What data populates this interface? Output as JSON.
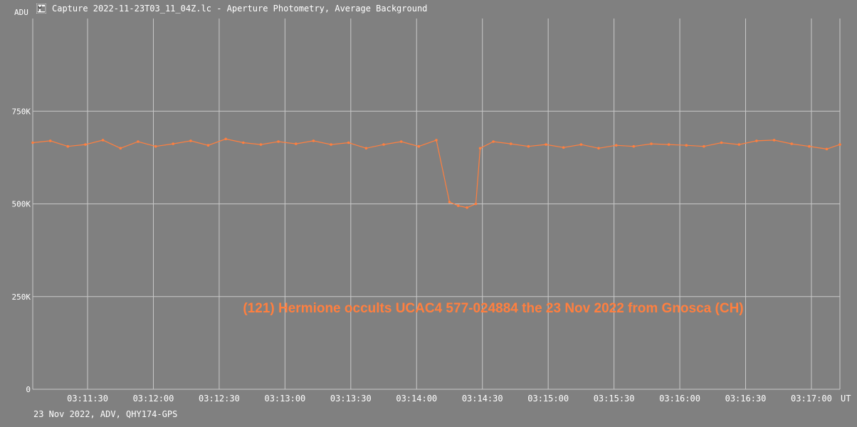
{
  "window": {
    "title": "Capture 2022-11-23T03_11_04Z.lc - Aperture Photometry, Average Background",
    "icon": "lightcurve-app-icon"
  },
  "footer": {
    "info": "23 Nov 2022, ADV, QHY174-GPS"
  },
  "colors": {
    "background": "#808080",
    "grid": "#c8c8c8",
    "series": "#ff7f3f",
    "text": "#ffffff"
  },
  "chart_data": {
    "type": "line",
    "title": "(121) Hermione occults UCAC4 577-024884 the 23 Nov 2022 from Gnosca (CH)",
    "ylabel": "ADU",
    "xlabel": "UT",
    "ylim": [
      0,
      1000000
    ],
    "xlim": [
      "03:11:05",
      "03:17:13"
    ],
    "y_ticks": [
      {
        "value": 0,
        "label": "0"
      },
      {
        "value": 250000,
        "label": "250K"
      },
      {
        "value": 500000,
        "label": "500K"
      },
      {
        "value": 750000,
        "label": "750K"
      }
    ],
    "x_ticks": [
      {
        "value": "03:11:30",
        "label": "03:11:30"
      },
      {
        "value": "03:12:00",
        "label": "03:12:00"
      },
      {
        "value": "03:12:30",
        "label": "03:12:30"
      },
      {
        "value": "03:13:00",
        "label": "03:13:00"
      },
      {
        "value": "03:13:30",
        "label": "03:13:30"
      },
      {
        "value": "03:14:00",
        "label": "03:14:00"
      },
      {
        "value": "03:14:30",
        "label": "03:14:30"
      },
      {
        "value": "03:15:00",
        "label": "03:15:00"
      },
      {
        "value": "03:15:30",
        "label": "03:15:30"
      },
      {
        "value": "03:16:00",
        "label": "03:16:00"
      },
      {
        "value": "03:16:30",
        "label": "03:16:30"
      },
      {
        "value": "03:17:00",
        "label": "03:17:00"
      }
    ],
    "grid": true,
    "series": [
      {
        "x": [
          "03:11:05",
          "03:11:13",
          "03:11:21",
          "03:11:29",
          "03:11:37",
          "03:11:45",
          "03:11:53",
          "03:12:01",
          "03:12:09",
          "03:12:17",
          "03:12:25",
          "03:12:33",
          "03:12:41",
          "03:12:49",
          "03:12:57",
          "03:13:05",
          "03:13:13",
          "03:13:21",
          "03:13:29",
          "03:13:37",
          "03:13:45",
          "03:13:53",
          "03:14:01",
          "03:14:09",
          "03:14:15",
          "03:14:19",
          "03:14:23",
          "03:14:27",
          "03:14:29",
          "03:14:35",
          "03:14:43",
          "03:14:51",
          "03:14:59",
          "03:15:07",
          "03:15:15",
          "03:15:23",
          "03:15:31",
          "03:15:39",
          "03:15:47",
          "03:15:55",
          "03:16:03",
          "03:16:11",
          "03:16:19",
          "03:16:27",
          "03:16:35",
          "03:16:43",
          "03:16:51",
          "03:16:59",
          "03:17:07",
          "03:17:13"
        ],
        "y": [
          665000,
          670000,
          655000,
          660000,
          672000,
          650000,
          668000,
          655000,
          662000,
          670000,
          658000,
          675000,
          665000,
          660000,
          668000,
          662000,
          670000,
          660000,
          665000,
          650000,
          660000,
          668000,
          655000,
          672000,
          505000,
          495000,
          490000,
          500000,
          650000,
          668000,
          662000,
          655000,
          660000,
          652000,
          660000,
          650000,
          658000,
          655000,
          662000,
          660000,
          658000,
          655000,
          665000,
          660000,
          670000,
          672000,
          662000,
          655000,
          648000,
          660000
        ]
      }
    ]
  }
}
